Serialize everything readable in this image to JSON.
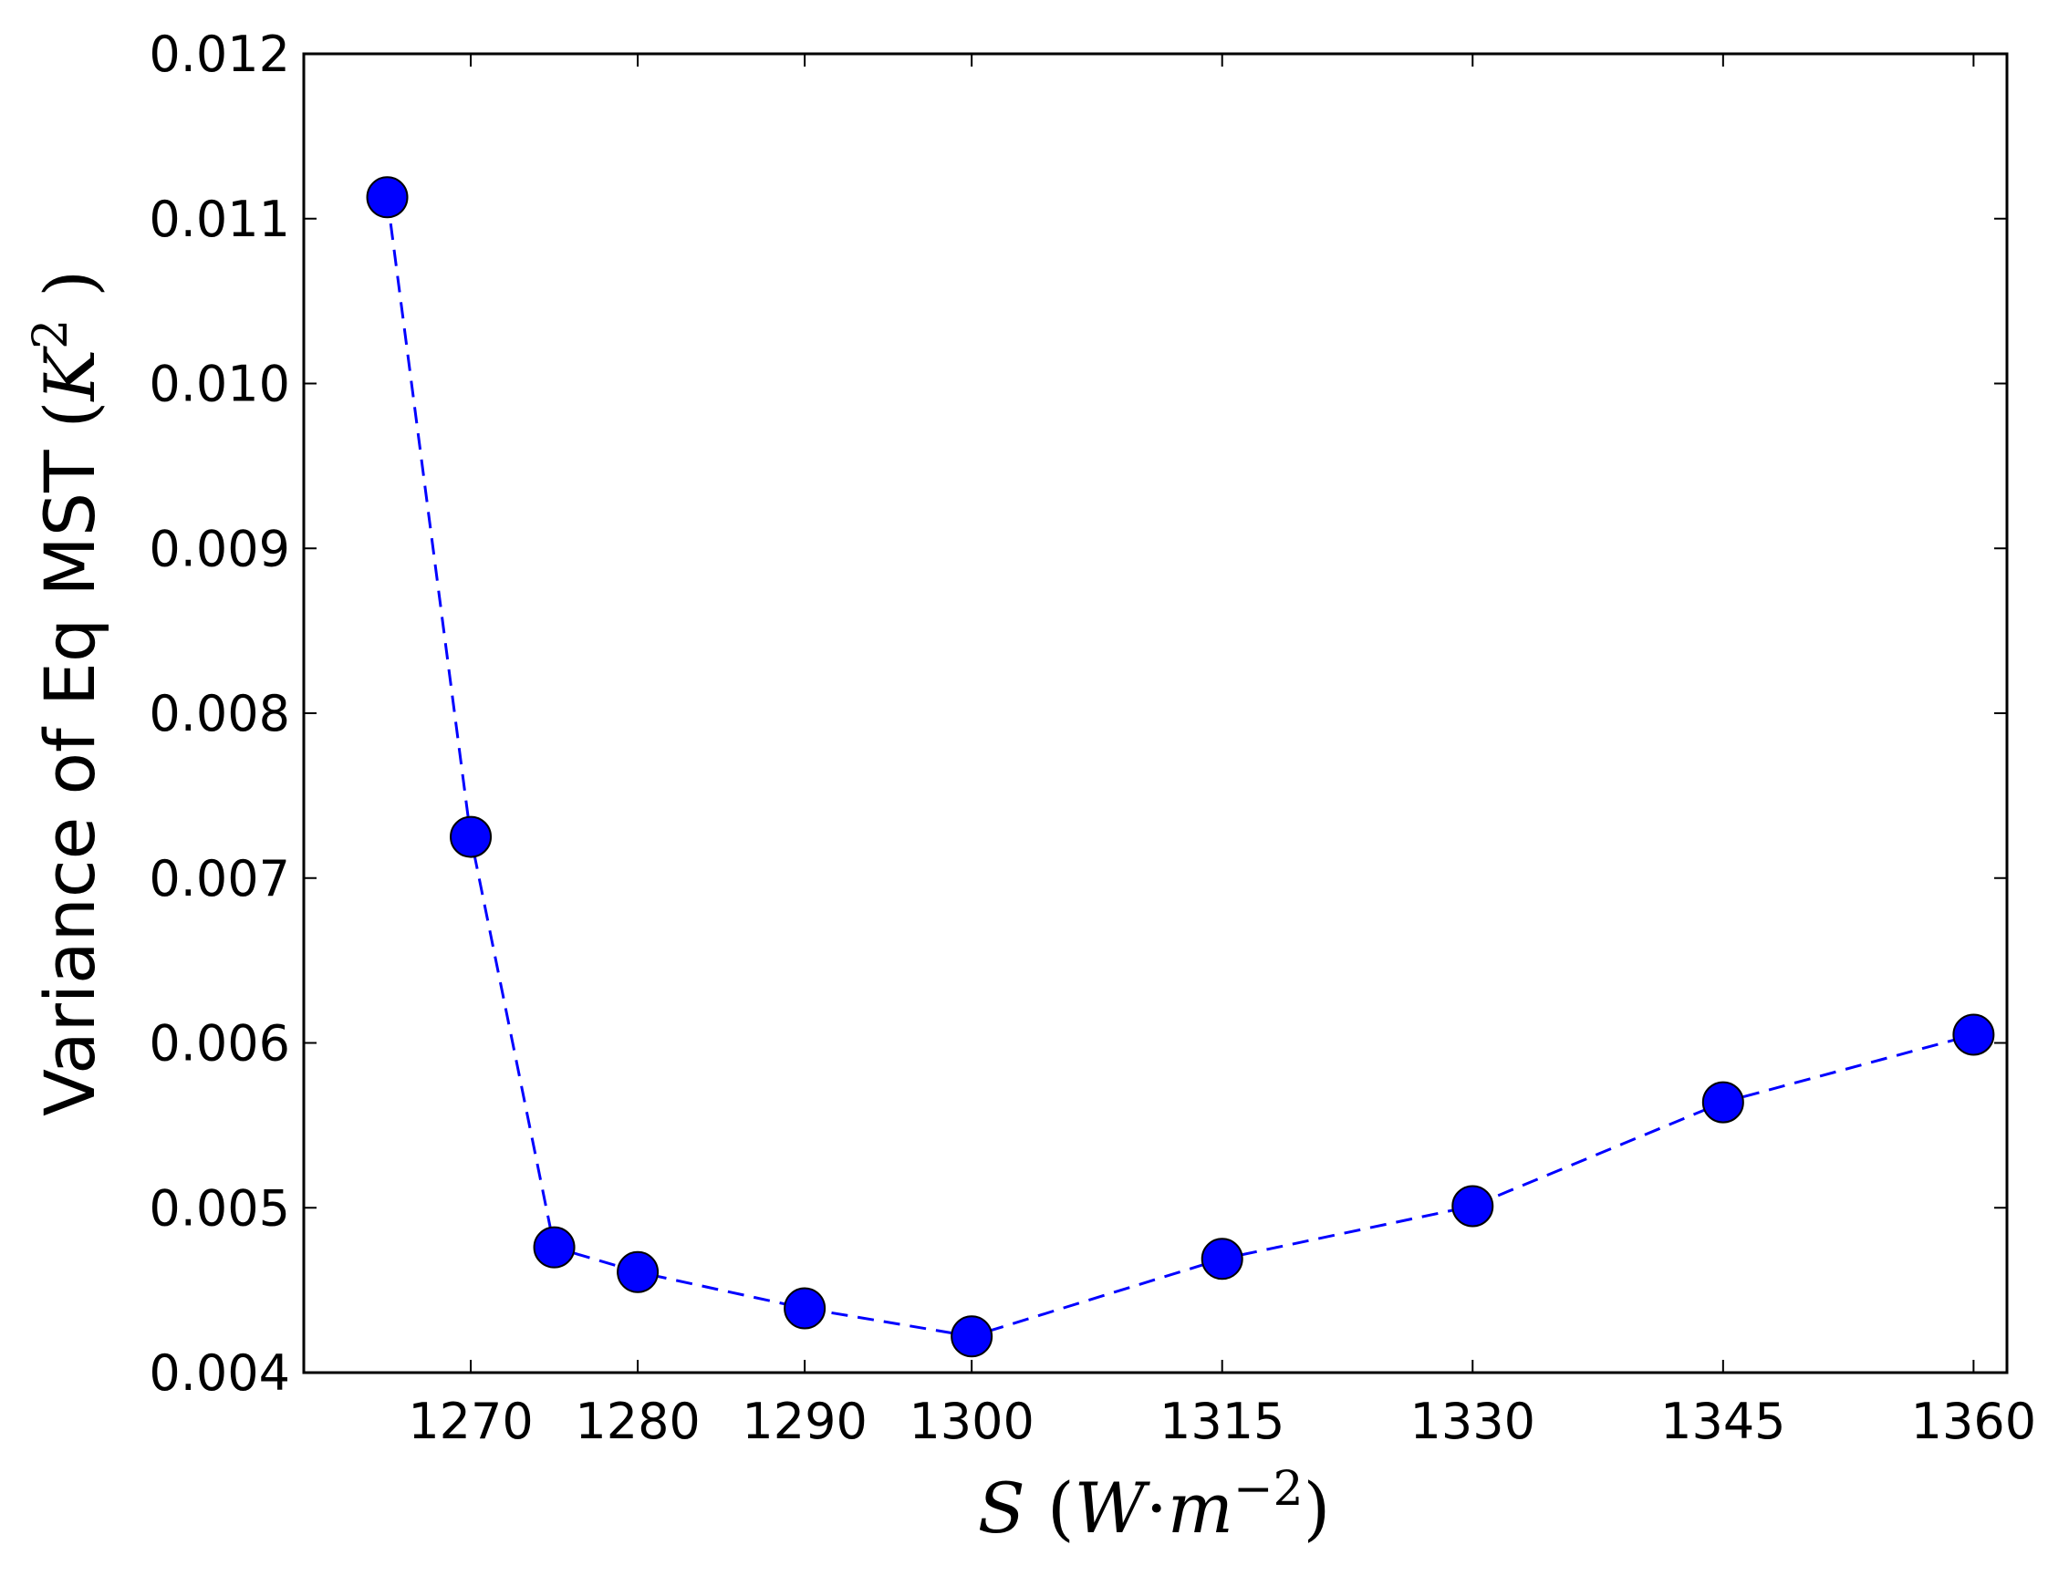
{
  "chart_data": {
    "type": "line",
    "xlabel": "S (W·m⁻²)",
    "ylabel": "Variance of Eq MST (K²)",
    "ylabel_text": "Variance of Eq MST ",
    "x_ticks": [
      "1270",
      "1280",
      "1290",
      "1300",
      "1315",
      "1330",
      "1345",
      "1360"
    ],
    "y_ticks": [
      "0.004",
      "0.005",
      "0.006",
      "0.007",
      "0.008",
      "0.009",
      "0.010",
      "0.011",
      "0.012"
    ],
    "xlim": [
      1260,
      1362
    ],
    "ylim": [
      0.004,
      0.012
    ],
    "scale_note": "x axis is non-linear: uniform 10-unit steps up to 1300, then 15-unit steps, drawn at matching tick positions",
    "grid": false,
    "line_style": "dashed",
    "marker": "circle",
    "colors": {
      "series": "#0000ff",
      "marker_edge": "#000000",
      "axes": "#000000"
    },
    "series": [
      {
        "x": [
          1265,
          1270,
          1275,
          1280,
          1290,
          1300,
          1315,
          1330,
          1345,
          1360
        ],
        "y": [
          0.01113,
          0.00725,
          0.00476,
          0.00461,
          0.00439,
          0.00422,
          0.00469,
          0.00501,
          0.00564,
          0.00605
        ]
      }
    ]
  }
}
